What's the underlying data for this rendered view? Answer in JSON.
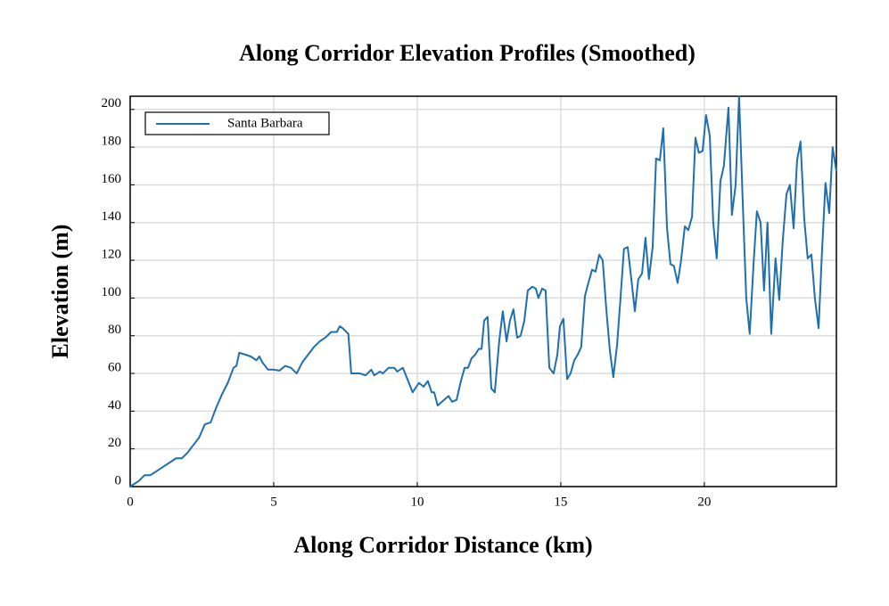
{
  "chart_data": {
    "type": "line",
    "title": "Along Corridor Elevation Profiles (Smoothed)",
    "x_label": "Along Corridor Distance (km)",
    "y_label": "Elevation (m)",
    "x": [
      0,
      0.3,
      0.5,
      0.7,
      1.0,
      1.2,
      1.4,
      1.6,
      1.8,
      2.0,
      2.2,
      2.4,
      2.6,
      2.8,
      3.0,
      3.2,
      3.4,
      3.6,
      3.7,
      3.8,
      4.0,
      4.2,
      4.4,
      4.5,
      4.6,
      4.8,
      5.0,
      5.2,
      5.4,
      5.6,
      5.8,
      6.0,
      6.2,
      6.4,
      6.6,
      6.8,
      7.0,
      7.2,
      7.3,
      7.4,
      7.6,
      7.7,
      8.0,
      8.2,
      8.4,
      8.5,
      8.7,
      8.8,
      9.0,
      9.2,
      9.3,
      9.5,
      9.84,
      10.06,
      10.22,
      10.37,
      10.5,
      10.59,
      10.71,
      11.09,
      11.21,
      11.37,
      11.52,
      11.65,
      11.77,
      11.89,
      12.02,
      12.14,
      12.24,
      12.33,
      12.45,
      12.58,
      12.7,
      12.86,
      12.98,
      13.11,
      13.23,
      13.35,
      13.48,
      13.6,
      13.73,
      13.85,
      14.01,
      14.13,
      14.22,
      14.35,
      14.47,
      14.6,
      14.75,
      14.88,
      14.97,
      15.09,
      15.22,
      15.34,
      15.47,
      15.59,
      15.71,
      15.84,
      15.96,
      16.09,
      16.21,
      16.34,
      16.46,
      16.58,
      16.71,
      16.83,
      16.96,
      17.08,
      17.2,
      17.33,
      17.45,
      17.58,
      17.7,
      17.83,
      17.95,
      18.07,
      18.2,
      18.32,
      18.45,
      18.57,
      18.7,
      18.82,
      18.94,
      19.07,
      19.19,
      19.32,
      19.44,
      19.57,
      19.69,
      19.81,
      19.94,
      20.06,
      20.19,
      20.31,
      20.43,
      20.56,
      20.68,
      20.84,
      20.96,
      21.09,
      21.21,
      21.34,
      21.46,
      21.58,
      21.71,
      21.83,
      21.96,
      22.08,
      22.2,
      22.33,
      22.48,
      22.61,
      22.73,
      22.86,
      22.98,
      23.11,
      23.23,
      23.35,
      23.48,
      23.6,
      23.73,
      23.85,
      23.98,
      24.1,
      24.22,
      24.35,
      24.47,
      24.6
    ],
    "series": [
      {
        "name": "Santa Barbara",
        "color": "#1f6fae",
        "values": [
          0,
          3,
          6,
          6,
          9,
          11,
          13,
          15,
          15,
          18,
          22,
          26,
          33,
          34,
          42,
          49,
          55,
          63,
          64,
          71,
          70,
          69,
          67,
          69,
          66,
          62,
          62,
          61.5,
          64,
          63,
          60,
          66,
          70,
          74,
          77,
          79,
          82,
          82,
          85,
          84,
          81,
          60,
          60,
          59,
          62,
          59,
          61,
          60,
          63,
          63,
          61,
          63,
          50,
          55,
          53,
          56,
          50,
          50,
          43,
          48,
          45,
          46,
          56,
          63,
          63,
          68,
          70,
          73,
          73,
          88,
          90,
          52,
          50,
          78,
          93,
          77,
          88,
          94,
          79,
          80,
          88,
          104,
          106,
          105,
          100,
          105,
          104,
          63,
          60,
          70,
          85,
          89,
          57,
          60,
          67,
          70,
          74,
          101,
          108,
          115,
          114,
          123,
          120,
          95,
          72,
          58,
          75,
          100,
          126,
          127,
          111,
          93,
          110,
          113,
          132,
          110,
          127,
          174,
          173,
          190,
          137,
          118,
          117,
          108,
          120,
          138,
          136,
          143,
          185,
          177,
          178,
          197,
          186,
          140,
          121,
          162,
          170,
          201,
          144,
          160,
          207,
          150,
          100,
          81,
          117,
          146,
          140,
          104,
          140,
          81,
          121,
          99,
          130,
          155,
          160,
          137,
          173,
          183,
          142,
          121,
          123,
          100,
          84,
          125,
          161,
          145,
          180,
          167
        ]
      }
    ],
    "xlim": [
      0,
      24.6
    ],
    "ylim": [
      0,
      207
    ],
    "xticks": [
      0,
      5,
      10,
      15,
      20
    ],
    "yticks": [
      0,
      20,
      40,
      60,
      80,
      100,
      120,
      140,
      160,
      180,
      200
    ],
    "grid": true,
    "legend": "upper-left"
  }
}
